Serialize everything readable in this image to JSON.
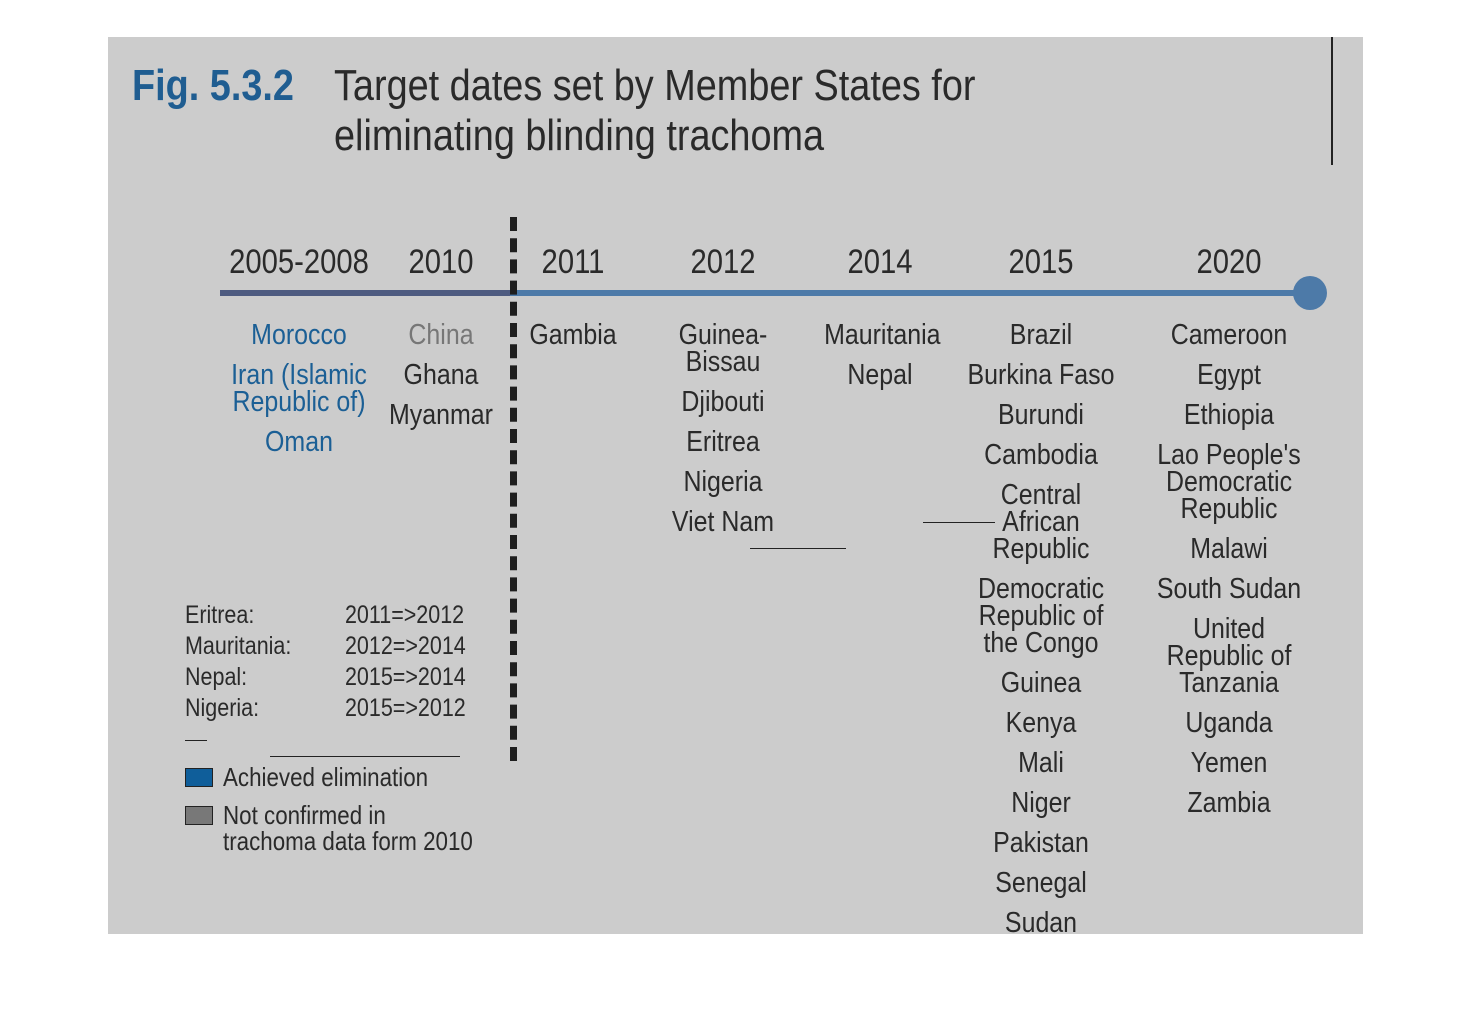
{
  "figure": {
    "number": "Fig. 5.3.2",
    "title": "Target dates set by Member States for eliminating blinding trachoma"
  },
  "colors": {
    "achieved": "#1b5f95",
    "not_confirmed": "#777777",
    "axis": "#4d7aa8"
  },
  "timeline": [
    {
      "year": "2005-2008",
      "countries": [
        {
          "name": "Morocco",
          "status": "achieved"
        },
        {
          "name": "Iran (Islamic Republic of)",
          "status": "achieved"
        },
        {
          "name": "Oman",
          "status": "achieved"
        }
      ]
    },
    {
      "year": "2010",
      "countries": [
        {
          "name": "China",
          "status": "not_confirmed"
        },
        {
          "name": "Ghana",
          "status": "normal"
        },
        {
          "name": "Myanmar",
          "status": "normal"
        }
      ]
    },
    {
      "year": "2011",
      "countries": [
        {
          "name": "Gambia",
          "status": "normal"
        }
      ]
    },
    {
      "year": "2012",
      "countries": [
        {
          "name": "Guinea-Bissau",
          "status": "normal"
        },
        {
          "name": "Djibouti",
          "status": "normal"
        },
        {
          "name": "Eritrea",
          "status": "normal"
        },
        {
          "name": "Nigeria",
          "status": "normal"
        },
        {
          "name": "Viet Nam",
          "status": "normal"
        }
      ]
    },
    {
      "year": "2014",
      "countries": [
        {
          "name": "Mauritania",
          "status": "normal"
        },
        {
          "name": "Nepal",
          "status": "normal"
        }
      ]
    },
    {
      "year": "2015",
      "countries": [
        {
          "name": "Brazil",
          "status": "normal"
        },
        {
          "name": "Burkina Faso",
          "status": "normal"
        },
        {
          "name": "Burundi",
          "status": "normal"
        },
        {
          "name": "Cambodia",
          "status": "normal"
        },
        {
          "name": "Central African Republic",
          "status": "normal"
        },
        {
          "name": "Democratic Republic of the Congo",
          "status": "normal"
        },
        {
          "name": "Guinea",
          "status": "normal"
        },
        {
          "name": "Kenya",
          "status": "normal"
        },
        {
          "name": "Mali",
          "status": "normal"
        },
        {
          "name": "Niger",
          "status": "normal"
        },
        {
          "name": "Pakistan",
          "status": "normal"
        },
        {
          "name": "Senegal",
          "status": "normal"
        },
        {
          "name": "Sudan",
          "status": "normal"
        }
      ]
    },
    {
      "year": "2020",
      "countries": [
        {
          "name": "Cameroon",
          "status": "normal"
        },
        {
          "name": "Egypt",
          "status": "normal"
        },
        {
          "name": "Ethiopia",
          "status": "normal"
        },
        {
          "name": "Lao People's Democratic Republic",
          "status": "normal"
        },
        {
          "name": "Malawi",
          "status": "normal"
        },
        {
          "name": "South Sudan",
          "status": "normal"
        },
        {
          "name": "United Republic of Tanzania",
          "status": "normal"
        },
        {
          "name": "Uganda",
          "status": "normal"
        },
        {
          "name": "Yemen",
          "status": "normal"
        },
        {
          "name": "Zambia",
          "status": "normal"
        }
      ]
    }
  ],
  "date_changes": [
    {
      "country": "Eritrea:",
      "change": "2011=>2012"
    },
    {
      "country": "Mauritania:",
      "change": "2012=>2014"
    },
    {
      "country": "Nepal:",
      "change": "2015=>2014"
    },
    {
      "country": "Nigeria:",
      "change": "2015=>2012"
    }
  ],
  "legend": {
    "achieved_label": "Achieved elimination",
    "not_confirmed_label": "Not confirmed in trachoma data form 2010"
  }
}
